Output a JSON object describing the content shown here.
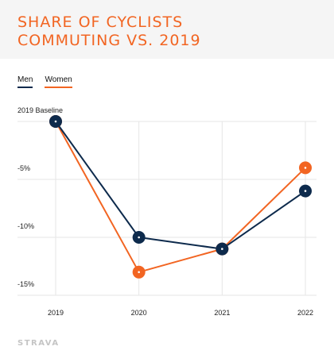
{
  "header": {
    "title_line1": "SHARE OF CYCLISTS",
    "title_line2": "COMMUTING VS. 2019"
  },
  "brand": {
    "logo_text": "STRAVA"
  },
  "colors": {
    "men": "#0d2a4c",
    "women": "#f26522",
    "header_bg": "#f5f5f5",
    "grid": "#e6e6e6"
  },
  "chart_data": {
    "type": "line",
    "title": "SHARE OF CYCLISTS COMMUTING VS. 2019",
    "x": [
      "2019",
      "2020",
      "2021",
      "2022"
    ],
    "series": [
      {
        "name": "Men",
        "values": [
          0,
          -10,
          -11,
          -6
        ]
      },
      {
        "name": "Women",
        "values": [
          0,
          -13,
          -11,
          -4
        ]
      }
    ],
    "ylim": [
      -15,
      0
    ],
    "yticks": [
      0,
      -5,
      -10,
      -15
    ],
    "ytick_labels": [
      "2019 Baseline",
      "-5%",
      "-10%",
      "-15%"
    ],
    "grid": true,
    "legend": "top-left"
  }
}
